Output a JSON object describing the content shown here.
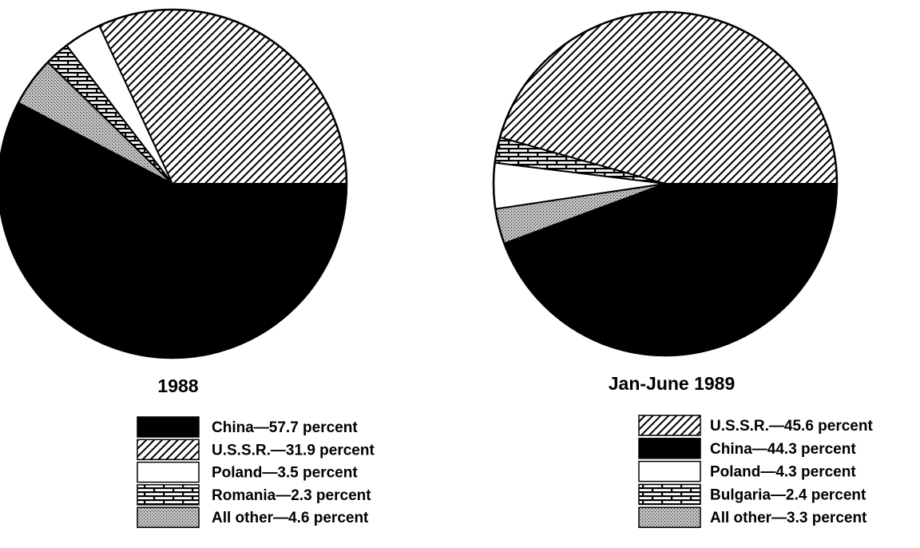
{
  "chart_data": [
    {
      "type": "pie",
      "title": "1988",
      "unit": "percent",
      "slices": [
        {
          "name": "China",
          "value": 57.7,
          "label": "China—57.7 percent",
          "pattern": "solid-black"
        },
        {
          "name": "U.S.S.R.",
          "value": 31.9,
          "label": "U.S.S.R.—31.9 percent",
          "pattern": "diagonal-hatch"
        },
        {
          "name": "Poland",
          "value": 3.5,
          "label": "Poland—3.5 percent",
          "pattern": "white"
        },
        {
          "name": "Romania",
          "value": 2.3,
          "label": "Romania—2.3 percent",
          "pattern": "brick"
        },
        {
          "name": "All other",
          "value": 4.6,
          "label": "All other—4.6 percent",
          "pattern": "stipple"
        }
      ]
    },
    {
      "type": "pie",
      "title": "Jan-June 1989",
      "unit": "percent",
      "slices": [
        {
          "name": "U.S.S.R.",
          "value": 45.6,
          "label": "U.S.S.R.—45.6 percent",
          "pattern": "diagonal-hatch"
        },
        {
          "name": "China",
          "value": 44.3,
          "label": "China—44.3 percent",
          "pattern": "solid-black"
        },
        {
          "name": "Poland",
          "value": 4.3,
          "label": "Poland—4.3 percent",
          "pattern": "white"
        },
        {
          "name": "Bulgaria",
          "value": 2.4,
          "label": "Bulgaria—2.4 percent",
          "pattern": "brick"
        },
        {
          "name": "All other",
          "value": 3.3,
          "label": "All other—3.3 percent",
          "pattern": "stipple"
        }
      ]
    }
  ]
}
